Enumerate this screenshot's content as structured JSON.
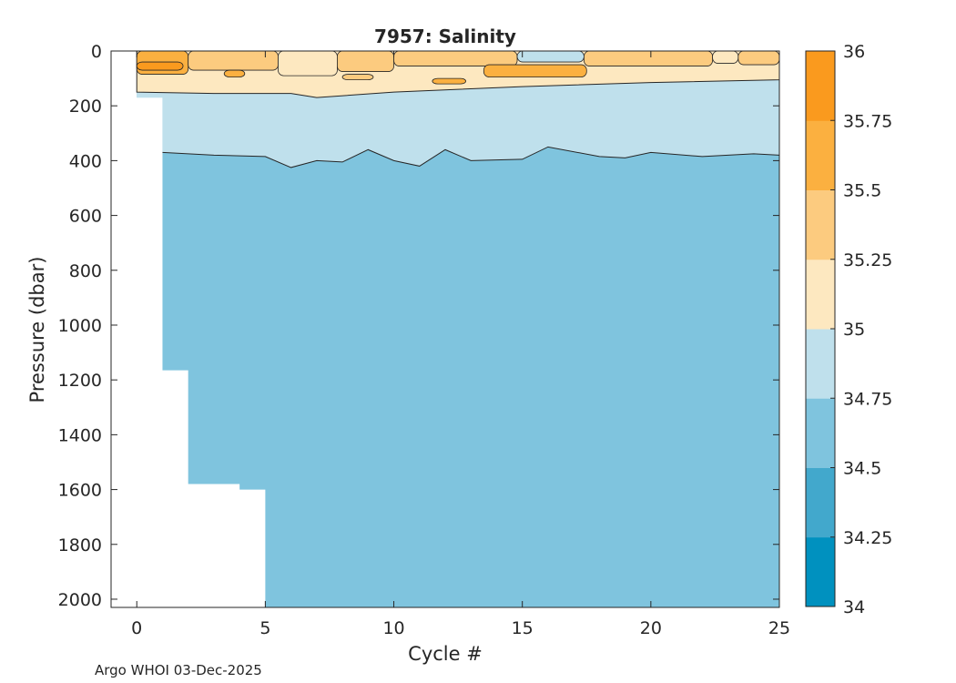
{
  "chart_data": {
    "type": "heatmap",
    "title": "7957:  Salinity",
    "xlabel": "Cycle #",
    "ylabel": "Pressure (dbar)",
    "xlim": [
      -1,
      25
    ],
    "ylim": [
      2030,
      0
    ],
    "x_ticks": [
      0,
      5,
      10,
      15,
      20,
      25
    ],
    "y_ticks": [
      0,
      200,
      400,
      600,
      800,
      1000,
      1200,
      1400,
      1600,
      1800,
      2000
    ],
    "colorbar": {
      "levels": [
        34,
        34.25,
        34.5,
        34.75,
        35,
        35.25,
        35.5,
        35.75,
        36
      ],
      "tick_labels": [
        "34",
        "34.25",
        "34.5",
        "34.75",
        "35",
        "35.25",
        "35.5",
        "35.75",
        "36"
      ],
      "colors": [
        "#0091bf",
        "#42a8cc",
        "#7fc4de",
        "#bfe0ec",
        "#fde8c0",
        "#fccb7f",
        "#fbb040",
        "#fa9a1e"
      ]
    },
    "profile_max_pressure": [
      {
        "cycle": 0,
        "pressure": 170
      },
      {
        "cycle": 1,
        "pressure": 1165
      },
      {
        "cycle": 2,
        "pressure": 1580
      },
      {
        "cycle": 4,
        "pressure": 1600
      },
      {
        "cycle": 5,
        "pressure": 2030
      }
    ],
    "surface_layer_bottom_35": [
      {
        "cycle": 0,
        "pressure": 150
      },
      {
        "cycle": 3,
        "pressure": 155
      },
      {
        "cycle": 6,
        "pressure": 155
      },
      {
        "cycle": 7,
        "pressure": 170
      },
      {
        "cycle": 10,
        "pressure": 150
      },
      {
        "cycle": 15,
        "pressure": 130
      },
      {
        "cycle": 20,
        "pressure": 115
      },
      {
        "cycle": 25,
        "pressure": 105
      }
    ],
    "isohaline_34_75": [
      {
        "cycle": 1,
        "pressure": 370
      },
      {
        "cycle": 3,
        "pressure": 380
      },
      {
        "cycle": 5,
        "pressure": 385
      },
      {
        "cycle": 6,
        "pressure": 425
      },
      {
        "cycle": 7,
        "pressure": 400
      },
      {
        "cycle": 8,
        "pressure": 405
      },
      {
        "cycle": 9,
        "pressure": 360
      },
      {
        "cycle": 10,
        "pressure": 400
      },
      {
        "cycle": 11,
        "pressure": 420
      },
      {
        "cycle": 12,
        "pressure": 360
      },
      {
        "cycle": 13,
        "pressure": 400
      },
      {
        "cycle": 15,
        "pressure": 395
      },
      {
        "cycle": 16,
        "pressure": 350
      },
      {
        "cycle": 18,
        "pressure": 385
      },
      {
        "cycle": 19,
        "pressure": 390
      },
      {
        "cycle": 20,
        "pressure": 370
      },
      {
        "cycle": 22,
        "pressure": 385
      },
      {
        "cycle": 24,
        "pressure": 375
      },
      {
        "cycle": 25,
        "pressure": 380
      }
    ],
    "surface_patches": [
      {
        "x0": 0,
        "x1": 2,
        "p0": 0,
        "p1": 85,
        "level": 35.5
      },
      {
        "x0": 2,
        "x1": 5.5,
        "p0": 0,
        "p1": 70,
        "level": 35.25
      },
      {
        "x0": 5.5,
        "x1": 7.8,
        "p0": 0,
        "p1": 90,
        "level": 35
      },
      {
        "x0": 7.8,
        "x1": 10,
        "p0": 0,
        "p1": 75,
        "level": 35.25
      },
      {
        "x0": 10,
        "x1": 14.8,
        "p0": 0,
        "p1": 55,
        "level": 35.25
      },
      {
        "x0": 14.8,
        "x1": 17.4,
        "p0": 0,
        "p1": 40,
        "level": 34.75
      },
      {
        "x0": 17.4,
        "x1": 22.4,
        "p0": 0,
        "p1": 55,
        "level": 35.25
      },
      {
        "x0": 22.4,
        "x1": 23.4,
        "p0": 0,
        "p1": 45,
        "level": 35
      },
      {
        "x0": 23.4,
        "x1": 25,
        "p0": 0,
        "p1": 50,
        "level": 35.25
      },
      {
        "x0": 13.5,
        "x1": 17.5,
        "p0": 50,
        "p1": 95,
        "level": 35.5
      },
      {
        "x0": 0,
        "x1": 1.8,
        "p0": 40,
        "p1": 70,
        "level": 35.75
      },
      {
        "x0": 3.4,
        "x1": 4.2,
        "p0": 70,
        "p1": 95,
        "level": 35.5
      },
      {
        "x0": 8,
        "x1": 9.2,
        "p0": 85,
        "p1": 105,
        "level": 35.25
      },
      {
        "x0": 11.5,
        "x1": 12.8,
        "p0": 100,
        "p1": 120,
        "level": 35.5
      }
    ],
    "footer_label": "Argo WHOI 03-Dec-2025"
  }
}
